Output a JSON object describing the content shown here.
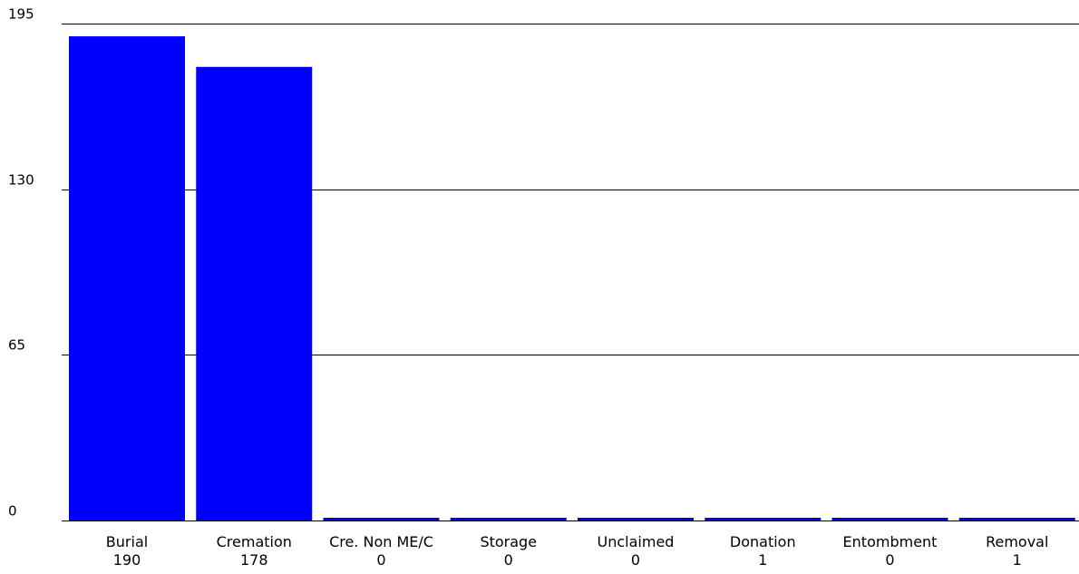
{
  "chart_data": {
    "type": "bar",
    "categories": [
      "Burial",
      "Cremation",
      "Cre. Non ME/C",
      "Storage",
      "Unclaimed",
      "Donation",
      "Entombment",
      "Removal"
    ],
    "values": [
      190,
      178,
      0,
      0,
      0,
      1,
      0,
      1
    ],
    "value_labels": [
      "190",
      "178",
      "0",
      "0",
      "0",
      "1",
      "0",
      "1"
    ],
    "ylim": [
      0,
      195
    ],
    "yticks": [
      0,
      65,
      130,
      195
    ],
    "ytick_labels": [
      "0",
      "65",
      "130",
      "195"
    ],
    "grid": true,
    "bar_color": "#0000ff",
    "gridline_color": "#000000"
  }
}
